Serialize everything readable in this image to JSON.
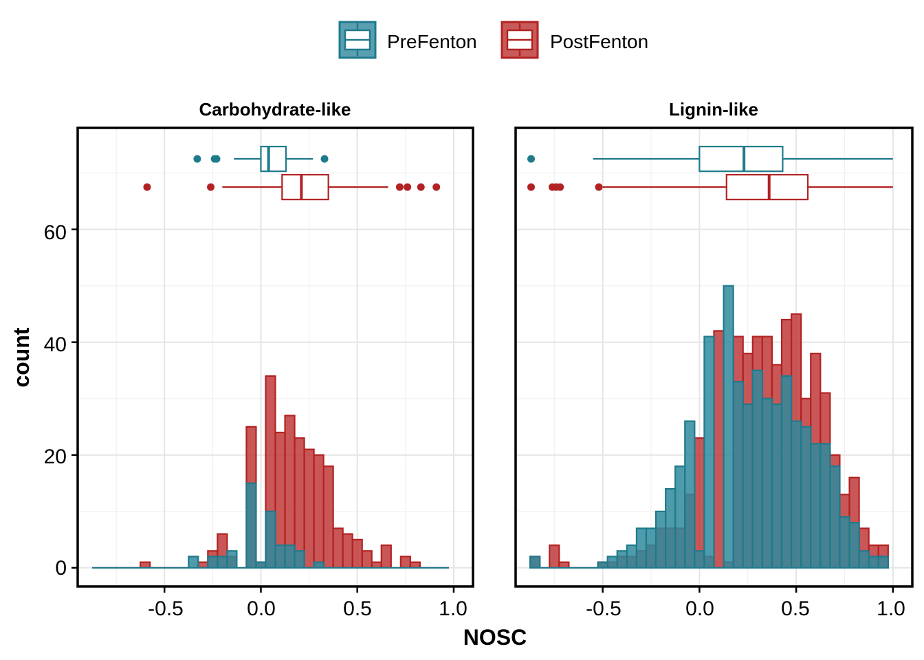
{
  "chart_data": {
    "type": "histogram-with-boxplots",
    "xlabel": "NOSC",
    "ylabel": "count",
    "xlim": [
      -0.95,
      1.1
    ],
    "ylim": [
      -3.3,
      78
    ],
    "x_ticks": [
      -0.5,
      0.0,
      0.5,
      1.0
    ],
    "x_tick_labels": [
      "-0.5",
      "0.0",
      "0.5",
      "1.0"
    ],
    "y_ticks": [
      0,
      20,
      40,
      60
    ],
    "y_tick_labels": [
      "0",
      "20",
      "40",
      "60"
    ],
    "grid": true,
    "legend_position": "top",
    "bin_width": 0.05,
    "series": [
      {
        "name": "PreFenton",
        "color": "#1f7a8c",
        "fill": "#2f8a9c"
      },
      {
        "name": "PostFenton",
        "color": "#b22222",
        "fill": "#c03a3a"
      }
    ],
    "panels": [
      {
        "title": "Carbohydrate-like",
        "bin_start": -0.875,
        "PostFenton": [
          0,
          0,
          0,
          0,
          0,
          1,
          0,
          0,
          0,
          0,
          0,
          1,
          3,
          6,
          2,
          0,
          25,
          1,
          34,
          24,
          27,
          23,
          21,
          20,
          18,
          7,
          6,
          5,
          3,
          1,
          4,
          0,
          2,
          1,
          0,
          0,
          0
        ],
        "PreFenton": [
          0,
          0,
          0,
          0,
          0,
          0,
          0,
          0,
          0,
          0,
          2,
          0,
          2,
          2,
          3,
          0,
          15,
          1,
          10,
          4,
          4,
          3,
          0,
          1,
          0,
          0,
          0,
          0,
          0,
          0,
          0,
          0,
          0,
          0,
          0,
          0,
          0
        ],
        "boxplots": {
          "PreFenton": {
            "whisker_low": -0.14,
            "q1": 0.0,
            "median": 0.04,
            "q3": 0.13,
            "whisker_high": 0.27,
            "outliers": [
              -0.33,
              -0.24,
              -0.23,
              0.33
            ]
          },
          "PostFenton": {
            "whisker_low": -0.2,
            "q1": 0.11,
            "median": 0.21,
            "q3": 0.35,
            "whisker_high": 0.66,
            "outliers": [
              -0.59,
              -0.26,
              0.72,
              0.76,
              0.83,
              0.91
            ]
          }
        }
      },
      {
        "title": "Lignin-like",
        "bin_start": -0.875,
        "PostFenton": [
          2,
          0,
          4,
          1,
          0,
          0,
          0,
          1,
          1,
          2,
          2,
          3,
          4,
          7,
          7,
          7,
          13,
          23,
          2,
          42,
          1,
          41,
          38,
          41,
          41,
          36,
          44,
          45,
          30,
          38,
          31,
          20,
          13,
          16,
          7,
          4,
          4
        ],
        "PreFenton": [
          2,
          0,
          0,
          0,
          0,
          0,
          0,
          1,
          2,
          3,
          4,
          7,
          7,
          10,
          14,
          18,
          26,
          3,
          41,
          0,
          50,
          33,
          29,
          35,
          30,
          29,
          34,
          26,
          25,
          22,
          22,
          18,
          9,
          8,
          3,
          2,
          2
        ],
        "boxplots": {
          "PreFenton": {
            "whisker_low": -0.55,
            "q1": 0.0,
            "median": 0.23,
            "q3": 0.43,
            "whisker_high": 1.0,
            "outliers": [
              -0.87
            ]
          },
          "PostFenton": {
            "whisker_low": -0.5,
            "q1": 0.14,
            "median": 0.36,
            "q3": 0.56,
            "whisker_high": 1.0,
            "outliers": [
              -0.87,
              -0.76,
              -0.74,
              -0.72,
              -0.52
            ]
          }
        }
      }
    ]
  }
}
